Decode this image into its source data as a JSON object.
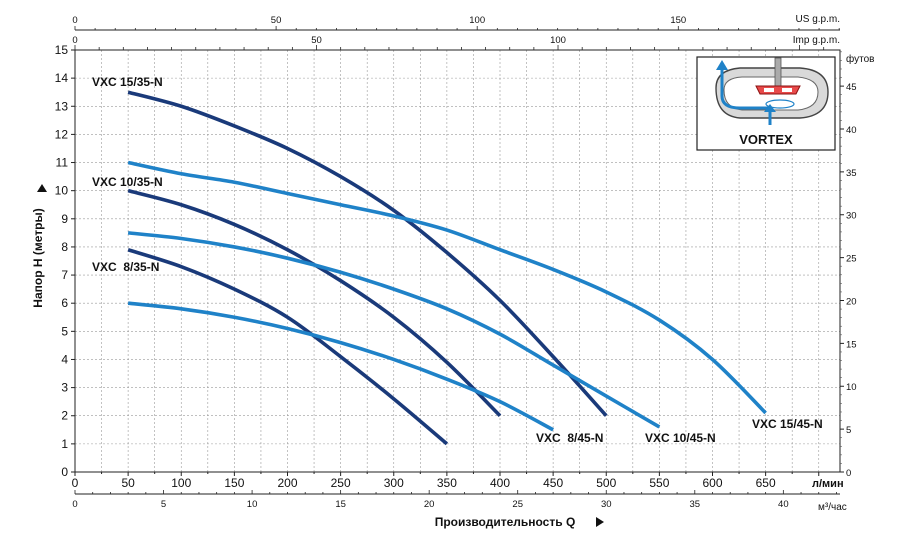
{
  "chart_data": {
    "type": "line",
    "xlabel": "Производительность  Q",
    "ylabel": "Напор  H (метры)",
    "x_unit": "л/мин",
    "x_alt_unit": "м³/час",
    "y_alt_unit": "футов",
    "top_axis_1_unit": "US g.p.m.",
    "top_axis_2_unit": "Imp g.p.m.",
    "xlim": [
      0,
      720
    ],
    "ylim": [
      0,
      15
    ],
    "x_ticks": [
      0,
      50,
      100,
      150,
      200,
      250,
      300,
      350,
      400,
      450,
      500,
      550,
      600,
      650
    ],
    "y_ticks": [
      0,
      1,
      2,
      3,
      4,
      5,
      6,
      7,
      8,
      9,
      10,
      11,
      12,
      13,
      14,
      15
    ],
    "m3h_ticks": [
      0,
      5,
      10,
      15,
      20,
      25,
      30,
      35,
      40
    ],
    "feet_ticks": [
      0,
      5,
      10,
      15,
      20,
      25,
      30,
      35,
      40,
      45
    ],
    "usgpm_ticks": [
      0,
      50,
      100,
      150
    ],
    "impgpm_ticks": [
      0,
      50,
      100
    ],
    "grid": true,
    "inset_label": "VORTEX",
    "series": [
      {
        "name": "VXC 15/35-N",
        "color": "#1a3a7a",
        "x": [
          50,
          100,
          150,
          200,
          250,
          300,
          350,
          400,
          450,
          500
        ],
        "y": [
          13.5,
          13.0,
          12.3,
          11.5,
          10.5,
          9.3,
          7.8,
          6.1,
          4.1,
          2.0
        ]
      },
      {
        "name": "VXC 10/35-N",
        "color": "#1a3a7a",
        "x": [
          50,
          100,
          150,
          200,
          250,
          300,
          350,
          400
        ],
        "y": [
          10.0,
          9.5,
          8.8,
          7.9,
          6.8,
          5.5,
          3.9,
          2.0
        ]
      },
      {
        "name": "VXC  8/35-N",
        "color": "#1a3a7a",
        "x": [
          50,
          100,
          150,
          200,
          250,
          300,
          350
        ],
        "y": [
          7.9,
          7.3,
          6.5,
          5.5,
          4.1,
          2.6,
          1.0
        ]
      },
      {
        "name": "VXC 15/45-N",
        "color": "#1f82c8",
        "x": [
          50,
          100,
          150,
          200,
          250,
          300,
          350,
          400,
          450,
          500,
          550,
          600,
          650
        ],
        "y": [
          11.0,
          10.6,
          10.3,
          9.9,
          9.5,
          9.1,
          8.6,
          7.9,
          7.2,
          6.4,
          5.4,
          4.0,
          2.1
        ]
      },
      {
        "name": "VXC 10/45-N",
        "color": "#1f82c8",
        "x": [
          50,
          100,
          150,
          200,
          250,
          300,
          350,
          400,
          450,
          500,
          550
        ],
        "y": [
          8.5,
          8.3,
          8.0,
          7.6,
          7.1,
          6.5,
          5.8,
          4.9,
          3.8,
          2.7,
          1.6
        ]
      },
      {
        "name": "VXC  8/45-N",
        "color": "#1f82c8",
        "x": [
          50,
          100,
          150,
          200,
          250,
          300,
          350,
          400,
          450
        ],
        "y": [
          6.0,
          5.8,
          5.5,
          5.1,
          4.6,
          4.0,
          3.3,
          2.5,
          1.5
        ]
      }
    ]
  }
}
